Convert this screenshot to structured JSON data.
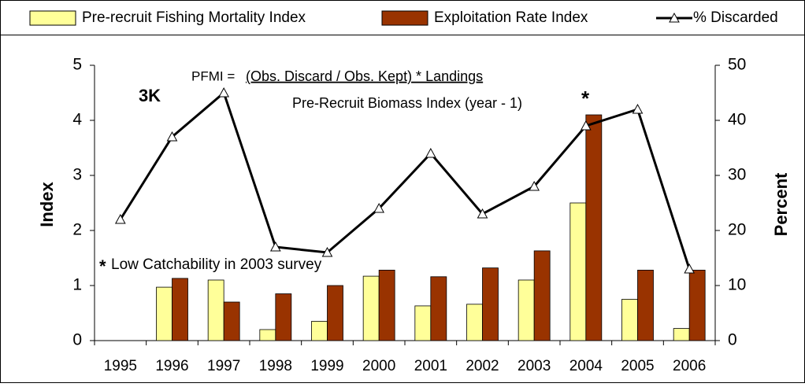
{
  "chart_data": {
    "type": "bar",
    "categories": [
      "1995",
      "1996",
      "1997",
      "1998",
      "1999",
      "2000",
      "2001",
      "2002",
      "2003",
      "2004",
      "2005",
      "2006"
    ],
    "series": [
      {
        "name": "Pre-recruit Fishing Mortality Index",
        "type": "bar",
        "color": "#ffff99",
        "values": [
          null,
          0.97,
          1.1,
          0.2,
          0.35,
          1.17,
          0.63,
          0.66,
          1.1,
          2.5,
          0.75,
          0.22
        ]
      },
      {
        "name": "Exploitation Rate Index",
        "type": "bar",
        "color": "#993300",
        "values": [
          null,
          1.13,
          0.7,
          0.85,
          1.0,
          1.28,
          1.16,
          1.32,
          1.63,
          4.1,
          1.28,
          1.28
        ]
      },
      {
        "name": "% Discarded",
        "type": "line",
        "color": "#000000",
        "axis": "y2",
        "values": [
          22,
          37,
          45,
          17,
          16,
          24,
          34,
          23,
          28,
          39,
          42,
          13
        ]
      }
    ],
    "ylabel": "Index",
    "y2label": "Percent",
    "ylim": [
      0,
      5
    ],
    "yticks": [
      0,
      1,
      2,
      3,
      4,
      5
    ],
    "y2lim": [
      0,
      50
    ],
    "y2ticks": [
      0,
      10,
      20,
      30,
      40,
      50
    ],
    "annotations": {
      "region": "3K",
      "formula_lhs": "PFMI =",
      "formula_numerator": "(Obs. Discard / Obs. Kept) * Landings",
      "formula_denominator": "Pre-Recruit Biomass Index (year - 1)",
      "star_2004": "*",
      "note_star": "*",
      "note": "Low  Catchability in 2003 survey"
    }
  }
}
